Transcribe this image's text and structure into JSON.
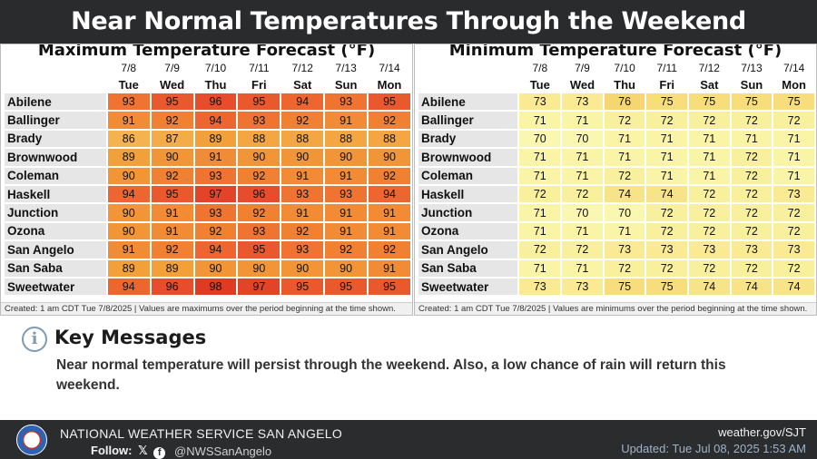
{
  "title": "Near Normal Temperatures Through the Weekend",
  "max_table": {
    "title": "Maximum Temperature Forecast (°F)",
    "dates": [
      "7/8",
      "7/9",
      "7/10",
      "7/11",
      "7/12",
      "7/13",
      "7/14"
    ],
    "days": [
      "Tue",
      "Wed",
      "Thu",
      "Fri",
      "Sat",
      "Sun",
      "Mon"
    ],
    "rows": [
      {
        "city": "Abilene",
        "values": [
          93,
          95,
          96,
          95,
          94,
          93,
          95
        ]
      },
      {
        "city": "Ballinger",
        "values": [
          91,
          92,
          94,
          93,
          92,
          91,
          92
        ]
      },
      {
        "city": "Brady",
        "values": [
          86,
          87,
          89,
          88,
          88,
          88,
          88
        ]
      },
      {
        "city": "Brownwood",
        "values": [
          89,
          90,
          91,
          90,
          90,
          90,
          90
        ]
      },
      {
        "city": "Coleman",
        "values": [
          90,
          92,
          93,
          92,
          91,
          91,
          92
        ]
      },
      {
        "city": "Haskell",
        "values": [
          94,
          95,
          97,
          96,
          93,
          93,
          94
        ]
      },
      {
        "city": "Junction",
        "values": [
          90,
          91,
          93,
          92,
          91,
          91,
          91
        ]
      },
      {
        "city": "Ozona",
        "values": [
          90,
          91,
          92,
          93,
          92,
          91,
          91
        ]
      },
      {
        "city": "San Angelo",
        "values": [
          91,
          92,
          94,
          95,
          93,
          92,
          92
        ]
      },
      {
        "city": "San Saba",
        "values": [
          89,
          89,
          90,
          90,
          90,
          90,
          91
        ]
      },
      {
        "city": "Sweetwater",
        "values": [
          94,
          96,
          98,
          97,
          95,
          95,
          95
        ]
      }
    ],
    "footnote": "Created: 1 am CDT Tue 7/8/2025  |  Values are maximums over the period beginning at the time shown."
  },
  "min_table": {
    "title": "Minimum Temperature Forecast (°F)",
    "dates": [
      "7/8",
      "7/9",
      "7/10",
      "7/11",
      "7/12",
      "7/13",
      "7/14"
    ],
    "days": [
      "Tue",
      "Wed",
      "Thu",
      "Fri",
      "Sat",
      "Sun",
      "Mon"
    ],
    "rows": [
      {
        "city": "Abilene",
        "values": [
          73,
          73,
          76,
          75,
          75,
          75,
          75
        ]
      },
      {
        "city": "Ballinger",
        "values": [
          71,
          71,
          72,
          72,
          72,
          72,
          72
        ]
      },
      {
        "city": "Brady",
        "values": [
          70,
          70,
          71,
          71,
          71,
          71,
          71
        ]
      },
      {
        "city": "Brownwood",
        "values": [
          71,
          71,
          71,
          71,
          71,
          72,
          71
        ]
      },
      {
        "city": "Coleman",
        "values": [
          71,
          71,
          72,
          71,
          71,
          72,
          71
        ]
      },
      {
        "city": "Haskell",
        "values": [
          72,
          72,
          74,
          74,
          72,
          72,
          73
        ]
      },
      {
        "city": "Junction",
        "values": [
          71,
          70,
          70,
          72,
          72,
          72,
          72
        ]
      },
      {
        "city": "Ozona",
        "values": [
          71,
          71,
          71,
          72,
          72,
          72,
          72
        ]
      },
      {
        "city": "San Angelo",
        "values": [
          72,
          72,
          73,
          73,
          73,
          73,
          73
        ]
      },
      {
        "city": "San Saba",
        "values": [
          71,
          71,
          72,
          72,
          72,
          72,
          72
        ]
      },
      {
        "city": "Sweetwater",
        "values": [
          73,
          73,
          75,
          75,
          74,
          74,
          74
        ]
      }
    ],
    "footnote": "Created: 1 am CDT Tue 7/8/2025  |  Values are minimums over the period beginning at the time shown."
  },
  "key_messages": {
    "icon": "info-icon",
    "title": "Key Messages",
    "body": "Near normal temperature will persist through the weekend. Also, a low chance of rain will return this weekend."
  },
  "footer": {
    "office": "NATIONAL WEATHER SERVICE SAN ANGELO",
    "follow_label": "Follow:",
    "handle": "@NWSSanAngelo",
    "website": "weather.gov/SJT",
    "updated": "Updated: Tue Jul 08, 2025 1:53 AM"
  }
}
